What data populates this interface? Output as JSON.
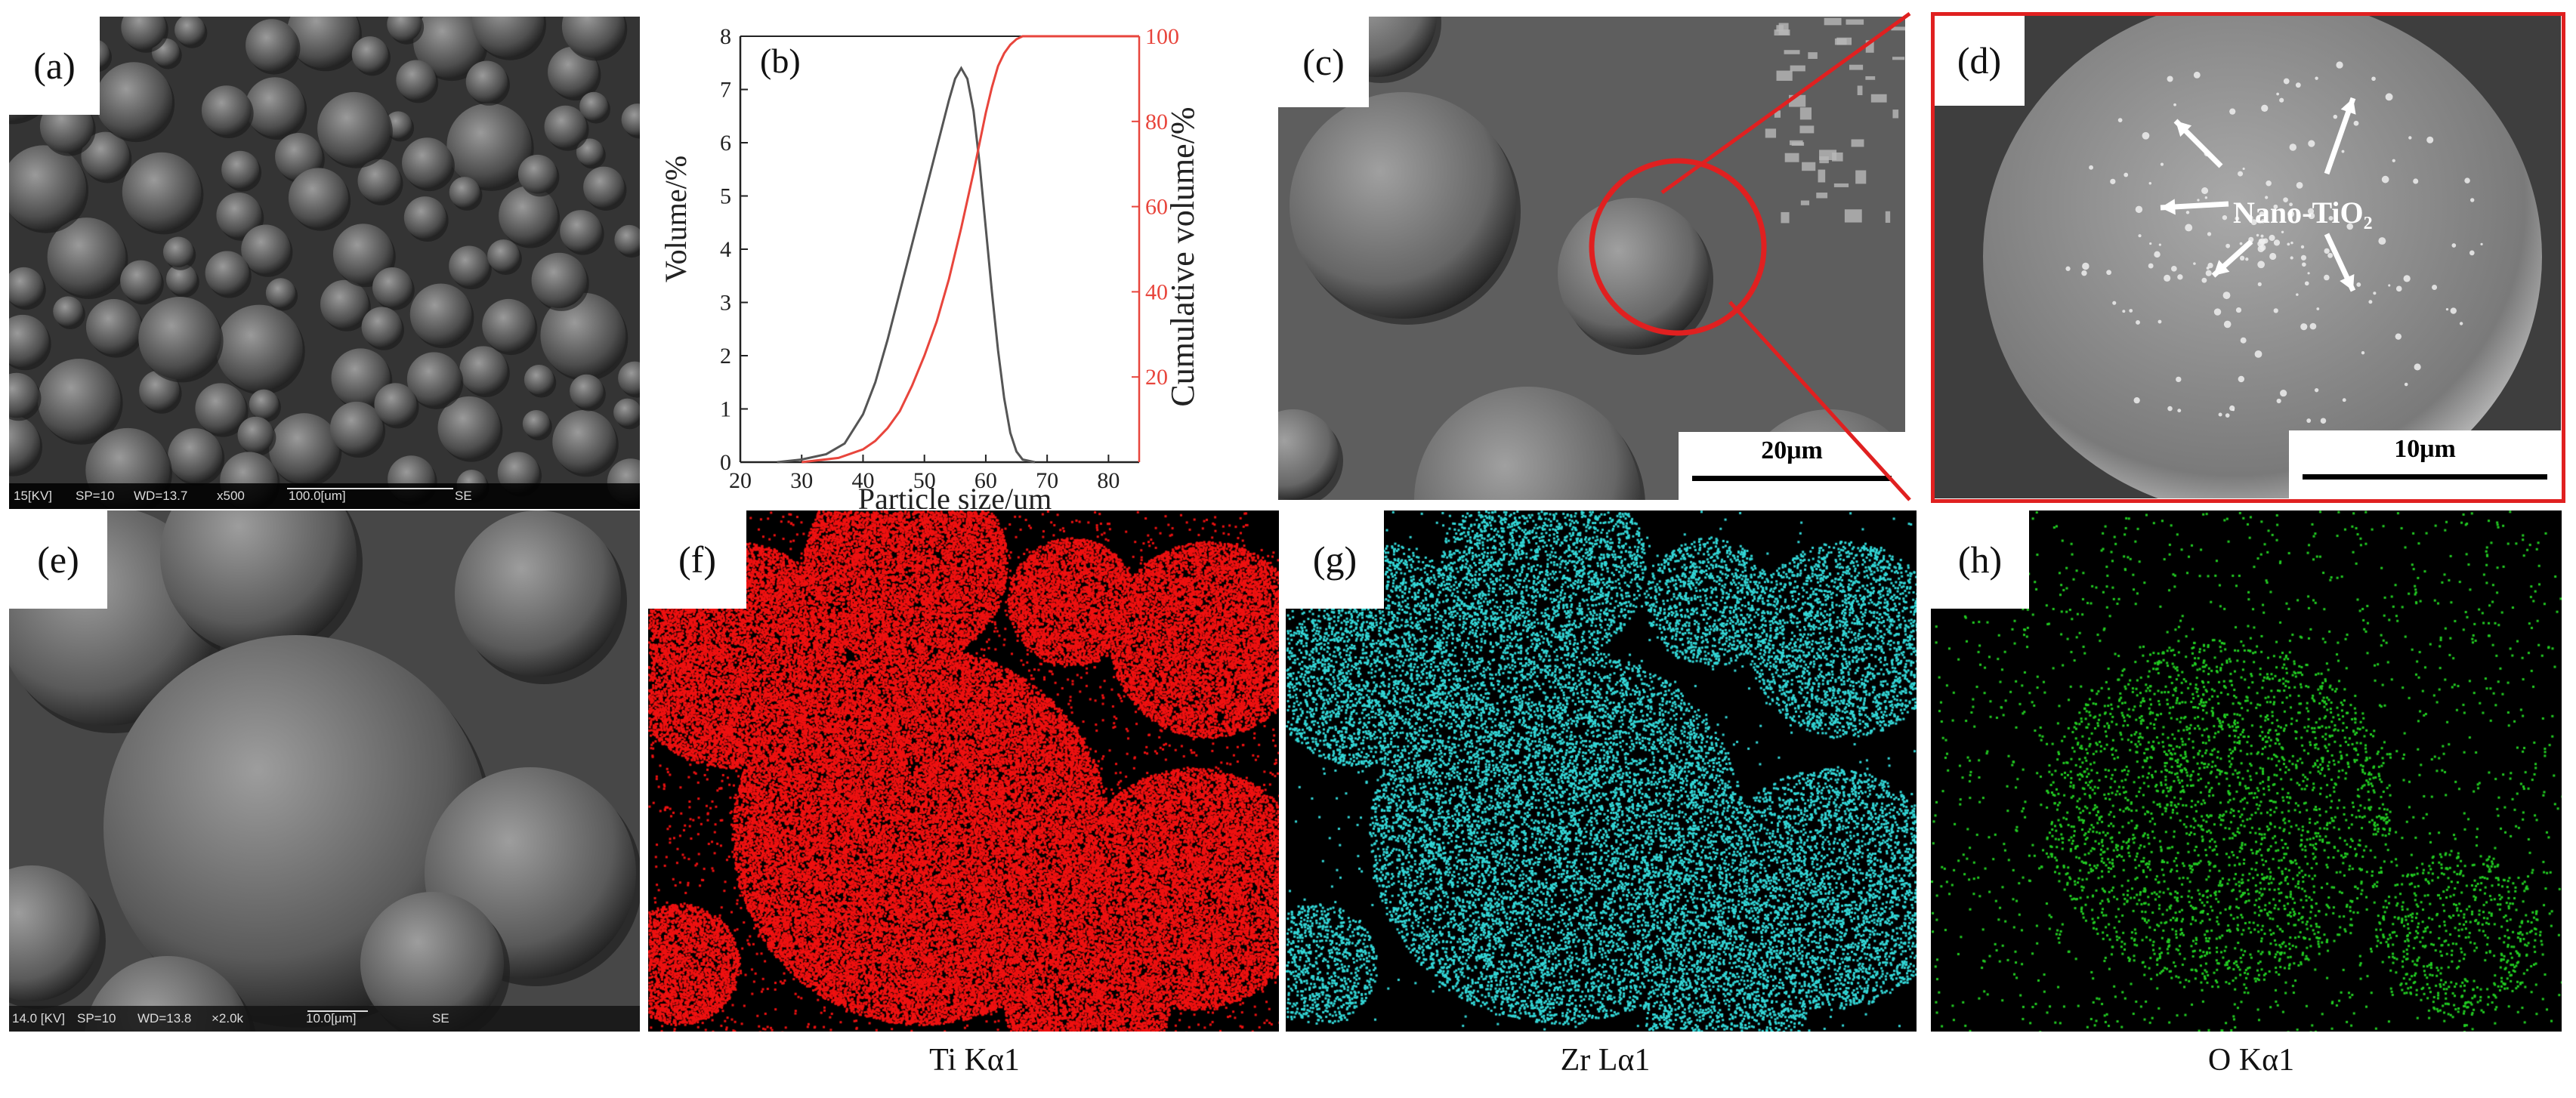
{
  "panels": {
    "a": {
      "label": "(a)",
      "sem_kv": "15[KV]",
      "sem_sp": "SP=10",
      "sem_wd": "WD=13.7",
      "sem_mag": "x500",
      "sem_scale": "100.0[um]",
      "sem_mode": "SE"
    },
    "b": {
      "label": "(b)"
    },
    "c": {
      "label": "(c)",
      "scale": "20μm"
    },
    "d": {
      "label": "(d)",
      "scale": "10μm",
      "annotation": "Nano-TiO₂"
    },
    "e": {
      "label": "(e)",
      "sem_kv": "14.0 [KV]",
      "sem_sp": "SP=10",
      "sem_wd": "WD=13.8",
      "sem_mag": "×2.0k",
      "sem_scale": "10.0[μm]",
      "sem_mode": "SE"
    },
    "f": {
      "label": "(f)",
      "element": "Ti Kα1"
    },
    "g": {
      "label": "(g)",
      "element": "Zr Lα1"
    },
    "h": {
      "label": "(h)",
      "element": "O Kα1"
    }
  },
  "colors": {
    "map_ti": "#ee1111",
    "map_zr": "#33d6d6",
    "map_o": "#22cc22",
    "cumulative": "#e8453c",
    "volume": "#555555",
    "highlight": "#e02020"
  },
  "chart_data": {
    "type": "line",
    "title": "",
    "xlabel": "Particle size/um",
    "ylabel": "Volume/%",
    "y2label": "Cumulative volume/%",
    "xlim": [
      20,
      85
    ],
    "ylim": [
      0,
      8
    ],
    "y2lim": [
      0,
      100
    ],
    "xticks": [
      "20",
      "30",
      "40",
      "50",
      "60",
      "70",
      "80"
    ],
    "yticks": [
      "0",
      "1",
      "2",
      "3",
      "4",
      "5",
      "6",
      "7",
      "8"
    ],
    "y2ticks": [
      "20",
      "40",
      "60",
      "80",
      "100"
    ],
    "series": [
      {
        "axis": "left",
        "color": "#555555",
        "x": [
          26,
          30,
          34,
          37,
          40,
          42,
          44,
          46,
          48,
          50,
          52,
          54,
          55,
          56,
          57,
          58,
          59,
          60,
          61,
          62,
          63,
          64,
          65,
          66,
          68
        ],
        "y": [
          0,
          0.05,
          0.15,
          0.35,
          0.9,
          1.5,
          2.3,
          3.2,
          4.1,
          5.0,
          5.9,
          6.8,
          7.2,
          7.4,
          7.2,
          6.6,
          5.6,
          4.4,
          3.2,
          2.1,
          1.2,
          0.55,
          0.2,
          0.05,
          0
        ]
      },
      {
        "axis": "right",
        "color": "#e8453c",
        "x": [
          30,
          36,
          40,
          42,
          44,
          46,
          48,
          50,
          52,
          54,
          56,
          58,
          60,
          61,
          62,
          63,
          64,
          65,
          66,
          68,
          85
        ],
        "y": [
          0,
          1,
          3,
          5,
          8,
          12,
          18,
          25,
          33,
          43,
          55,
          68,
          82,
          88,
          93,
          96,
          98,
          99.3,
          100,
          100,
          100
        ]
      }
    ]
  }
}
